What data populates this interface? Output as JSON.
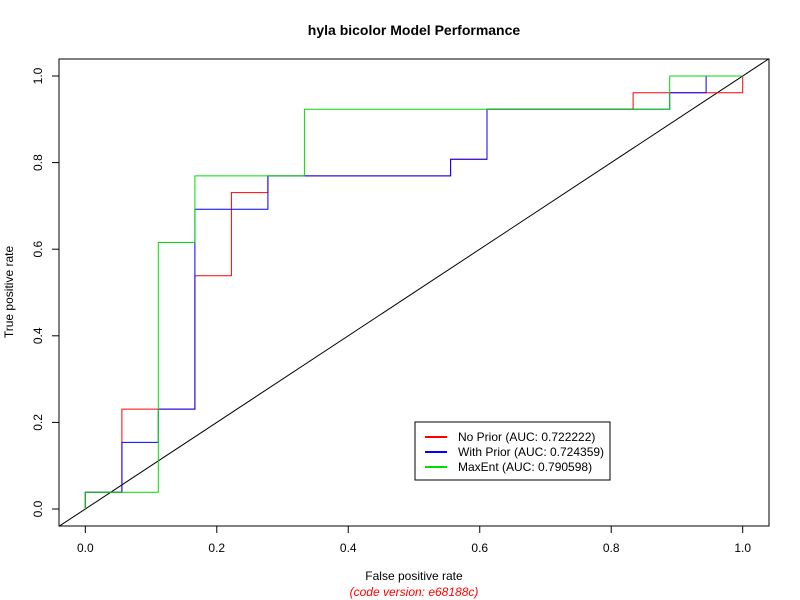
{
  "chart_data": {
    "type": "line",
    "title": "hyla bicolor Model Performance",
    "xlabel": "False positive rate",
    "ylabel": "True positive rate",
    "xlim": [
      0,
      1
    ],
    "ylim": [
      0,
      1
    ],
    "xticks": [
      "0.0",
      "0.2",
      "0.4",
      "0.6",
      "0.8",
      "1.0"
    ],
    "yticks": [
      "0.0",
      "0.2",
      "0.4",
      "0.6",
      "0.8",
      "1.0"
    ],
    "grid": false,
    "legend_position": "bottom-center",
    "reference_line": {
      "x": [
        0,
        1
      ],
      "y": [
        0,
        1
      ],
      "color": "#000000"
    },
    "series": [
      {
        "name": "No Prior (AUC: 0.722222)",
        "color": "#ff0000",
        "x": [
          0,
          0,
          0.0556,
          0.0556,
          0.1667,
          0.1667,
          0.2222,
          0.2222,
          0.2778,
          0.2778,
          0.5556,
          0.5556,
          0.6111,
          0.6111,
          0.8333,
          0.8333,
          1.0,
          1.0
        ],
        "y": [
          0,
          0.0385,
          0.0385,
          0.2308,
          0.2308,
          0.5385,
          0.5385,
          0.7308,
          0.7308,
          0.7692,
          0.7692,
          0.8077,
          0.8077,
          0.9231,
          0.9231,
          0.9615,
          0.9615,
          1.0
        ]
      },
      {
        "name": "With Prior (AUC: 0.724359)",
        "color": "#0000ff",
        "x": [
          0,
          0,
          0.0556,
          0.0556,
          0.1111,
          0.1111,
          0.1667,
          0.1667,
          0.2778,
          0.2778,
          0.5556,
          0.5556,
          0.6111,
          0.6111,
          0.8889,
          0.8889,
          0.9444,
          0.9444,
          1.0
        ],
        "y": [
          0,
          0.0385,
          0.0385,
          0.1538,
          0.1538,
          0.2308,
          0.2308,
          0.6923,
          0.6923,
          0.7692,
          0.7692,
          0.8077,
          0.8077,
          0.9231,
          0.9231,
          0.9615,
          0.9615,
          1.0,
          1.0
        ]
      },
      {
        "name": "MaxEnt (AUC: 0.790598)",
        "color": "#00dd00",
        "x": [
          0,
          0,
          0.1111,
          0.1111,
          0.1667,
          0.1667,
          0.3333,
          0.3333,
          0.8889,
          0.8889,
          1.0
        ],
        "y": [
          0,
          0.0385,
          0.0385,
          0.6154,
          0.6154,
          0.7692,
          0.7692,
          0.9231,
          0.9231,
          1.0,
          1.0
        ]
      }
    ]
  },
  "footer": {
    "code_version": "(code version: e68188c)",
    "color": "#ff0000"
  }
}
